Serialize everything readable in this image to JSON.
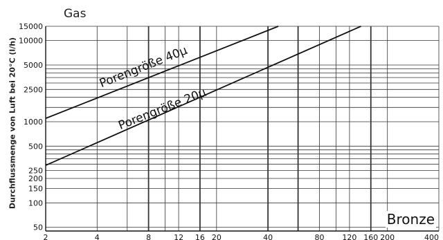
{
  "chart_data": {
    "type": "line",
    "title": "Gas",
    "ylabel": "Durchflussmenge von Luft bei 20°C (l/h)",
    "xlabel": "",
    "x_scale": "log",
    "y_scale": "log",
    "xlim": [
      2,
      400
    ],
    "ylim": [
      45,
      15000
    ],
    "x_ticks": [
      {
        "value": 2,
        "label": "2"
      },
      {
        "value": 4,
        "label": "4"
      },
      {
        "value": 8,
        "label": "8"
      },
      {
        "value": 12,
        "label": "12"
      },
      {
        "value": 16,
        "label": "16"
      },
      {
        "value": 20,
        "label": "20"
      },
      {
        "value": 40,
        "label": "40"
      },
      {
        "value": 80,
        "label": "80"
      },
      {
        "value": 120,
        "label": "120"
      },
      {
        "value": 160,
        "label": "160"
      },
      {
        "value": 200,
        "label": "200"
      },
      {
        "value": 400,
        "label": "400"
      }
    ],
    "y_ticks": [
      {
        "value": 50,
        "label": "50"
      },
      {
        "value": 100,
        "label": "100"
      },
      {
        "value": 150,
        "label": "150"
      },
      {
        "value": 200,
        "label": "200"
      },
      {
        "value": 250,
        "label": "250"
      },
      {
        "value": 500,
        "label": "500"
      },
      {
        "value": 1000,
        "label": "1000"
      },
      {
        "value": 2500,
        "label": "2500"
      },
      {
        "value": 5000,
        "label": "5000"
      },
      {
        "value": 10000,
        "label": "10000"
      },
      {
        "value": 15000,
        "label": "15000"
      }
    ],
    "x_gridlines": [
      2,
      4,
      6,
      8,
      10,
      12,
      16,
      20,
      40,
      60,
      80,
      100,
      120,
      160,
      200,
      400
    ],
    "x_gridlines_bold": [
      8,
      16,
      40,
      60,
      160
    ],
    "y_gridlines": [
      50,
      100,
      150,
      200,
      250,
      300,
      350,
      400,
      450,
      500,
      1000,
      1500,
      2000,
      2500,
      3000,
      3500,
      4000,
      4500,
      5000,
      10000,
      15000
    ],
    "series": [
      {
        "name": "Porengröße 40µ",
        "x": [
          2,
          46
        ],
        "y": [
          1100,
          15000
        ]
      },
      {
        "name": "Porengröße 20µ",
        "x": [
          2,
          140
        ],
        "y": [
          290,
          15000
        ]
      }
    ],
    "annotations": [
      {
        "text": "Porengröße 40µ",
        "x": 7.6,
        "y": 4300
      },
      {
        "text": "Porengröße 20µ",
        "x": 9.8,
        "y": 1300
      }
    ],
    "material_label": "Bronze",
    "grid": true,
    "line_color": "#111111",
    "grid_color": "#333333"
  }
}
